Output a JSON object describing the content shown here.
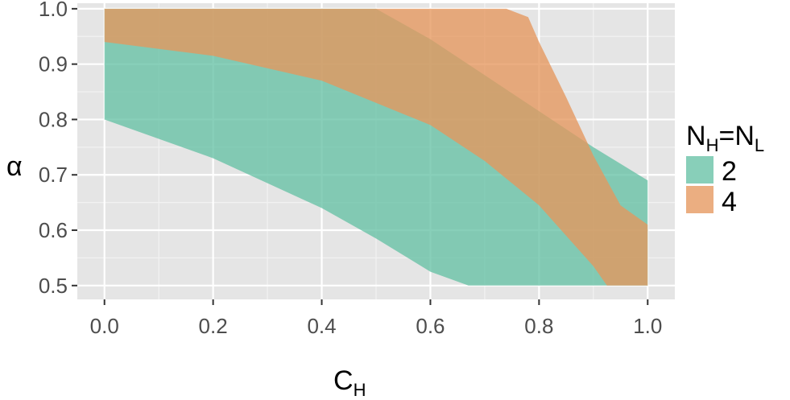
{
  "chart_data": {
    "type": "area",
    "xlabel": {
      "main": "C",
      "sub": "H"
    },
    "ylabel": "α",
    "xlim": [
      -0.05,
      1.05
    ],
    "ylim": [
      0.475,
      1.01
    ],
    "x_ticks": [
      "0.0",
      "0.2",
      "0.4",
      "0.6",
      "0.8",
      "1.0"
    ],
    "y_ticks": [
      "0.5",
      "0.6",
      "0.7",
      "0.8",
      "0.9",
      "1.0"
    ],
    "grid": true,
    "legend": {
      "placement": "right",
      "title": {
        "a": "N",
        "a_sub": "H",
        "eq": "=",
        "b": "N",
        "b_sub": "L"
      }
    },
    "series": [
      {
        "name": "2",
        "color": "#66c2a5",
        "upper": [
          [
            0,
            0.94
          ],
          [
            0.2,
            0.915
          ],
          [
            0.4,
            0.87
          ],
          [
            0.6,
            0.79
          ],
          [
            0.7,
            0.725
          ],
          [
            0.8,
            0.645
          ],
          [
            0.9,
            0.535
          ],
          [
            0.925,
            0.5
          ],
          [
            1.0,
            0.5
          ]
        ],
        "lower": [
          [
            0,
            0.8
          ],
          [
            0.2,
            0.73
          ],
          [
            0.4,
            0.64
          ],
          [
            0.5,
            0.585
          ],
          [
            0.6,
            0.525
          ],
          [
            0.67,
            0.5
          ],
          [
            1.0,
            0.5
          ]
        ],
        "right_edge": [
          0.69,
          0.5
        ]
      },
      {
        "name": "4",
        "color": "#e5975e",
        "upper": [
          [
            0,
            1.0
          ],
          [
            0.74,
            1.0
          ],
          [
            0.78,
            0.985
          ],
          [
            0.8,
            0.94
          ],
          [
            0.85,
            0.84
          ],
          [
            0.9,
            0.735
          ],
          [
            0.95,
            0.645
          ],
          [
            1.0,
            0.61
          ]
        ],
        "lower": [
          [
            0,
            0.94
          ],
          [
            0.2,
            0.915
          ],
          [
            0.4,
            0.87
          ],
          [
            0.6,
            0.79
          ],
          [
            0.7,
            0.725
          ],
          [
            0.8,
            0.645
          ],
          [
            0.9,
            0.535
          ],
          [
            0.925,
            0.5
          ],
          [
            1.0,
            0.5
          ]
        ],
        "upper_for_overlap": [
          [
            0,
            1.0
          ],
          [
            0.5,
            1.0
          ],
          [
            0.6,
            0.945
          ],
          [
            0.7,
            0.88
          ],
          [
            0.8,
            0.815
          ],
          [
            0.9,
            0.75
          ],
          [
            1.0,
            0.69
          ]
        ]
      }
    ]
  }
}
